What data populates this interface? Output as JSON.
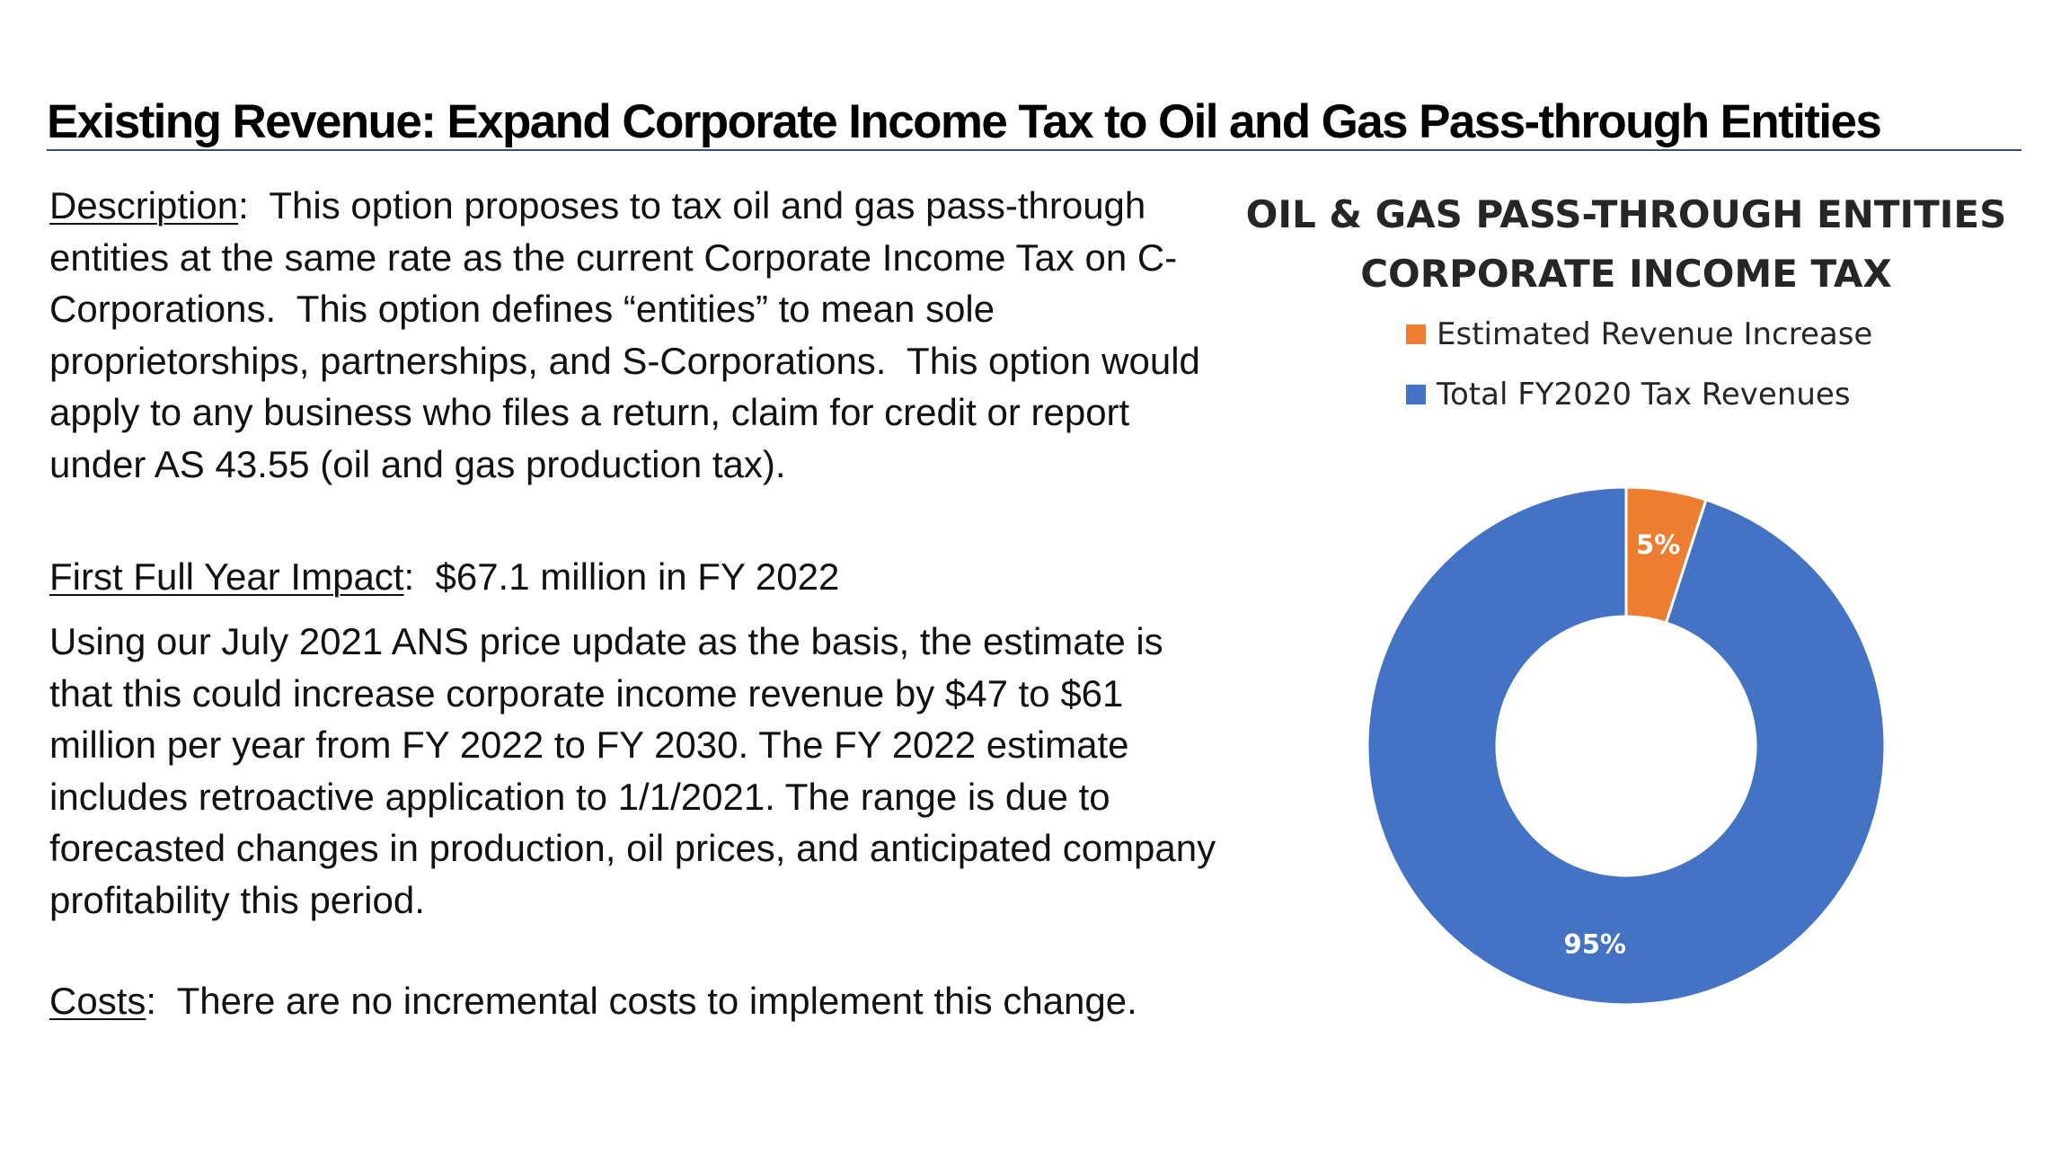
{
  "header": {
    "title": "Existing Revenue:  Expand Corporate Income Tax to Oil and Gas Pass-through Entities"
  },
  "description": {
    "label": "Description",
    "text": "  This option proposes to tax oil and gas pass-through entities at the same rate as the current Corporate Income Tax on C-Corporations.  This option defines “entities” to mean sole proprietorships, partnerships, and S-Corporations.  This option would apply to any business who files a return, claim for credit or report under AS 43.55 (oil and gas production tax)."
  },
  "impact": {
    "label": "First Full Year Impact",
    "value": "  $67.1 million in FY 2022",
    "body": "Using our July 2021 ANS price update as the basis, the estimate is that this could increase corporate income revenue by $47 to $61 million per year from FY 2022 to FY 2030.  The FY 2022 estimate includes retroactive application to 1/1/2021.  The range is due to forecasted changes in production, oil prices, and anticipated company profitability this period."
  },
  "costs": {
    "label": "Costs",
    "text": "  There are no incremental costs to implement this change."
  },
  "colors": {
    "orange": "#ED7D31",
    "blue": "#4472C4",
    "title_rule": "#2F4F7F"
  },
  "chart_data": {
    "type": "pie",
    "title_line1": "OIL & GAS PASS-THROUGH ENTITIES",
    "title_line2": "CORPORATE INCOME TAX",
    "legend_position": "top",
    "series": [
      {
        "name": "Estimated Revenue Increase",
        "value": 5,
        "label": "5%",
        "color": "#ED7D31"
      },
      {
        "name": "Total FY2020 Tax Revenues",
        "value": 95,
        "label": "95%",
        "color": "#4472C4"
      }
    ]
  }
}
